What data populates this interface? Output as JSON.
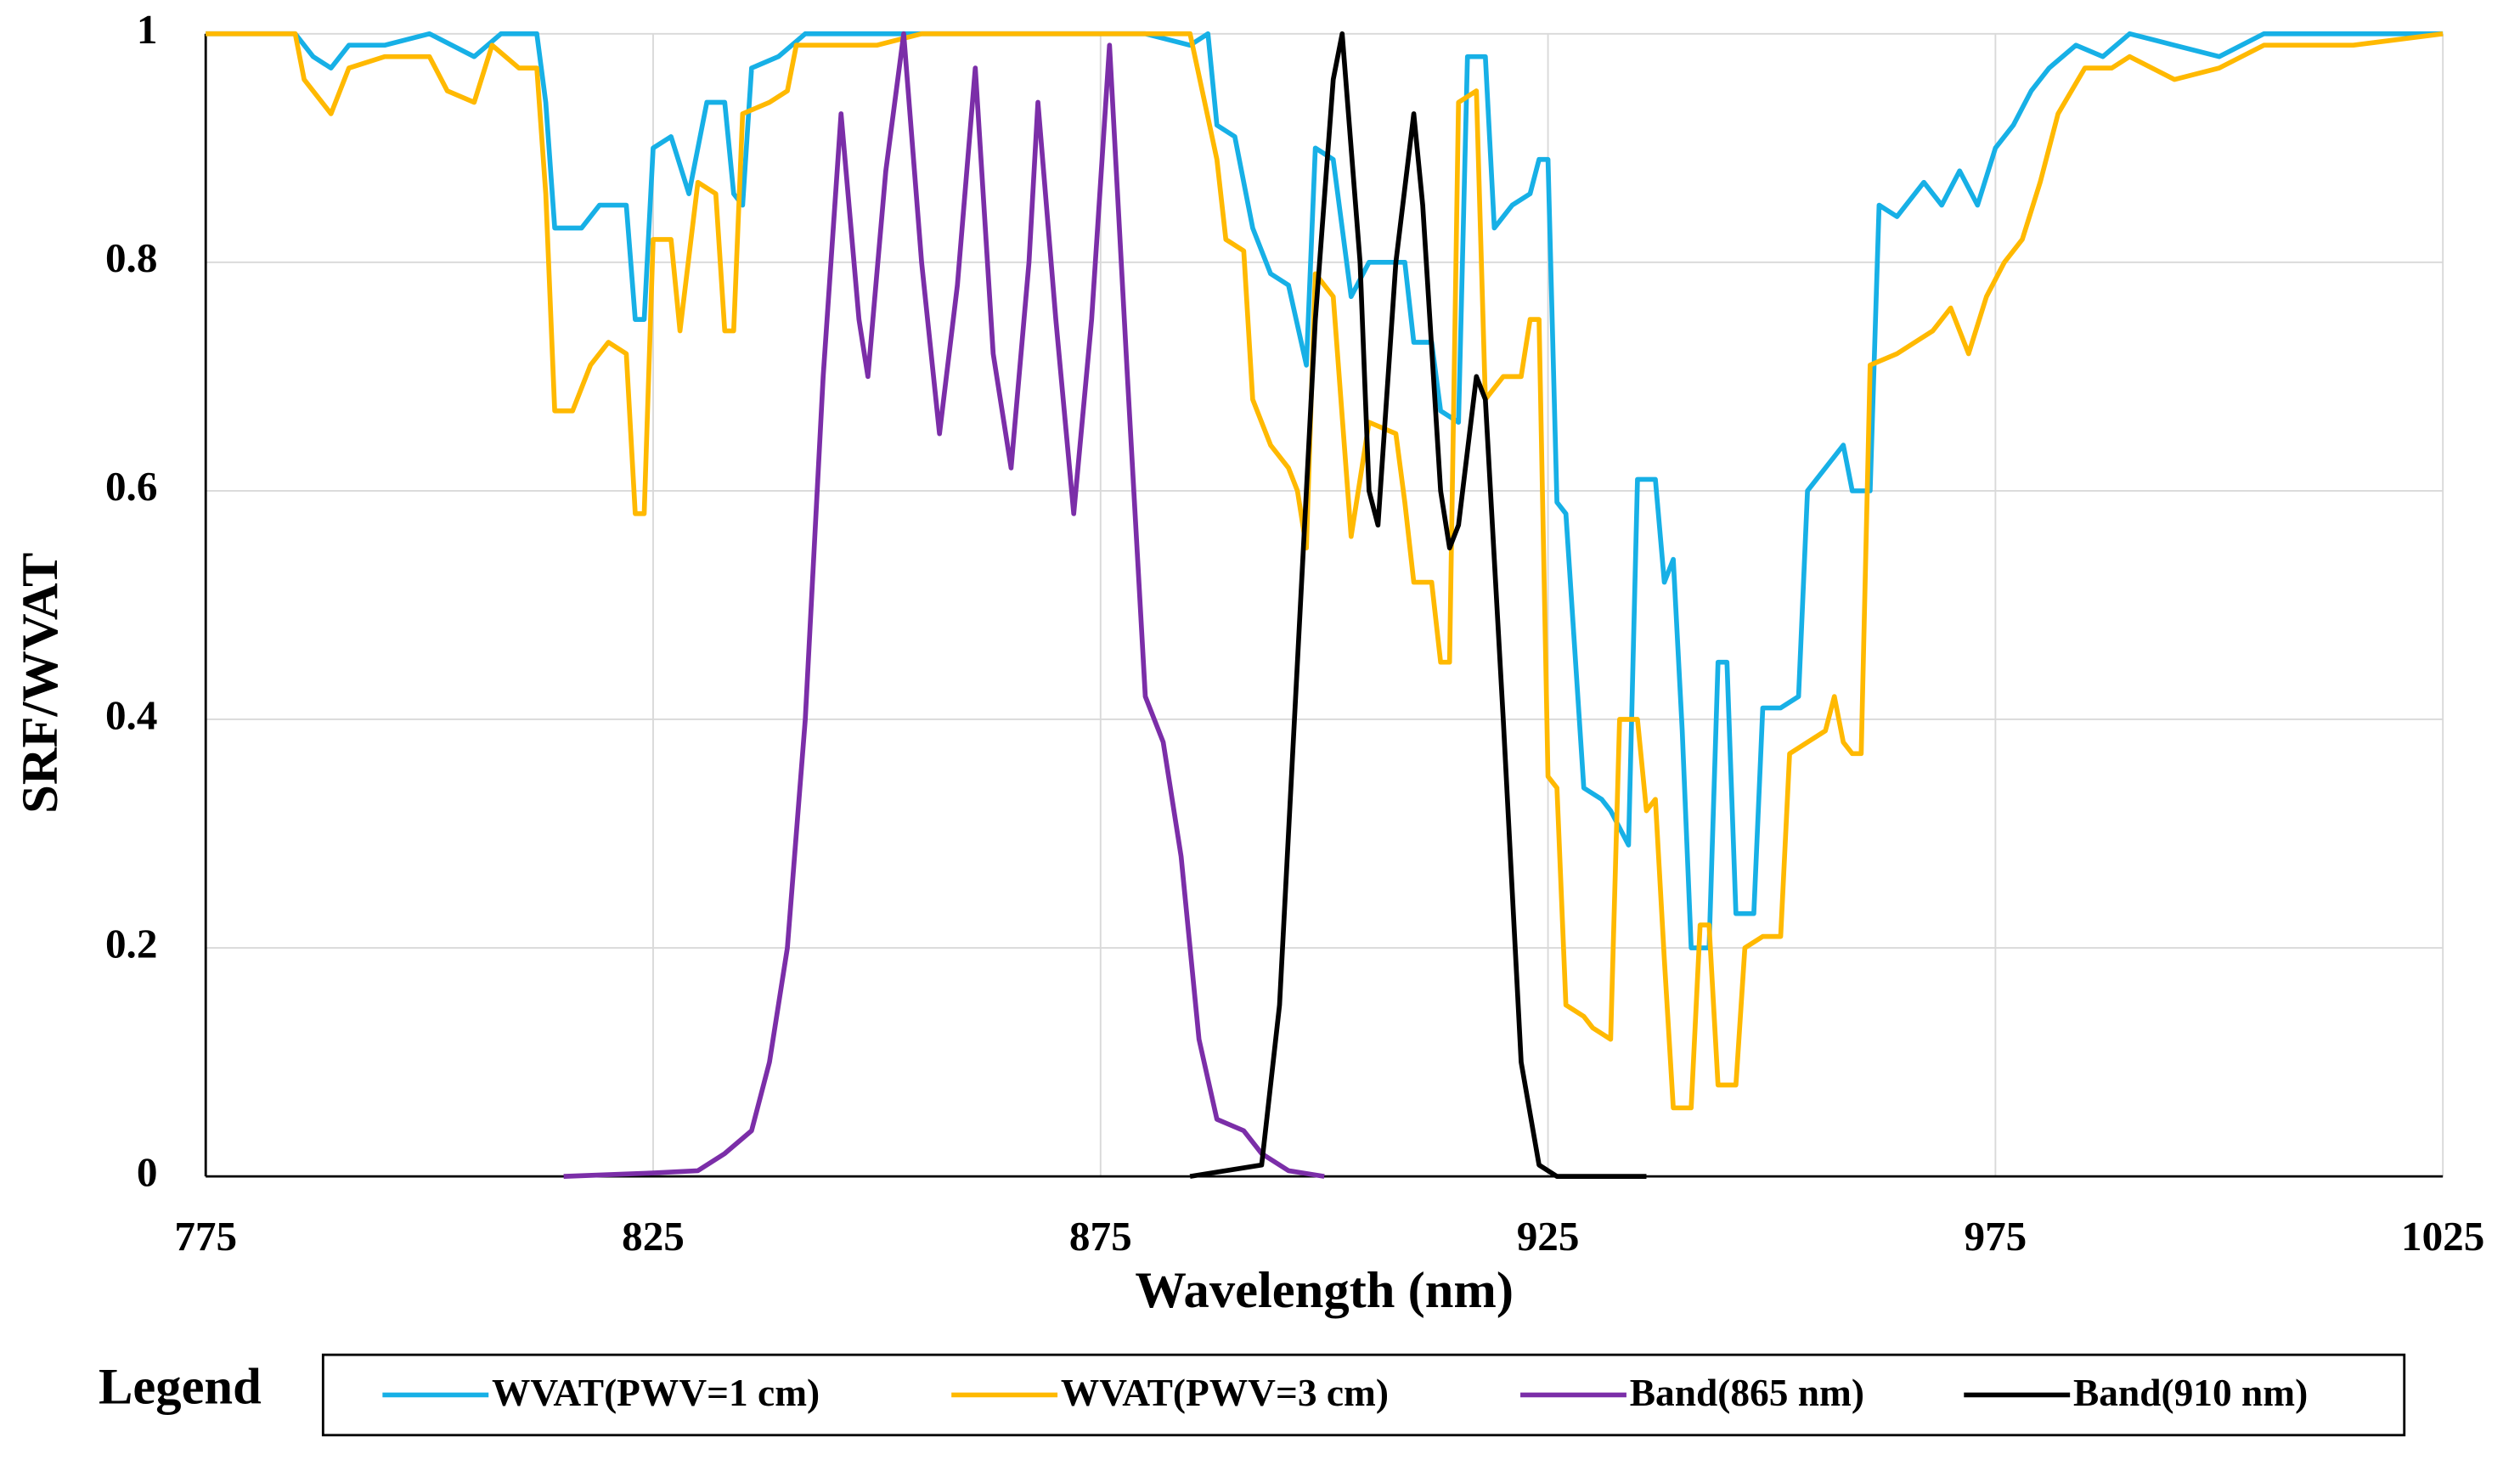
{
  "chart_data": {
    "type": "line",
    "y_label": "SRF/WVAT",
    "x_label": "Wavelength (nm)",
    "legend_title": "Legend",
    "xlim": [
      775,
      1025
    ],
    "ylim": [
      0,
      1
    ],
    "xticks": [
      775,
      825,
      875,
      925,
      975,
      1025
    ],
    "yticks": [
      0,
      0.2,
      0.4,
      0.6,
      0.8,
      1
    ],
    "grid": true,
    "series": [
      {
        "name": "WVAT(PWV=1 cm)",
        "color": "#17b0e6",
        "x": [
          775,
          785,
          787,
          789,
          791,
          795,
          800,
          805,
          808,
          812,
          813,
          814,
          817,
          819,
          822,
          823,
          824,
          825,
          827,
          829,
          831,
          833,
          834,
          835,
          836,
          839,
          842,
          855,
          880,
          885,
          887,
          888,
          890,
          892,
          894,
          896,
          898,
          899,
          901,
          903,
          905,
          909,
          910,
          912,
          913,
          915,
          916,
          918,
          919,
          921,
          923,
          924,
          925,
          926,
          927,
          929,
          931,
          932,
          934,
          935,
          937,
          938,
          939,
          940,
          941,
          943,
          944,
          945,
          946,
          948,
          949,
          951,
          953,
          954,
          956,
          958,
          959,
          961,
          962,
          964,
          967,
          969,
          971,
          973,
          975,
          977,
          979,
          981,
          984,
          987,
          990,
          995,
          1000,
          1005,
          1010,
          1025
        ],
        "values": [
          1,
          1,
          0.98,
          0.97,
          0.99,
          0.99,
          1,
          0.98,
          1,
          1,
          0.94,
          0.83,
          0.83,
          0.85,
          0.85,
          0.75,
          0.75,
          0.9,
          0.91,
          0.86,
          0.94,
          0.94,
          0.86,
          0.85,
          0.97,
          0.98,
          1,
          1,
          1,
          0.99,
          1,
          0.92,
          0.91,
          0.83,
          0.79,
          0.78,
          0.71,
          0.9,
          0.89,
          0.77,
          0.8,
          0.8,
          0.73,
          0.73,
          0.67,
          0.66,
          0.98,
          0.98,
          0.83,
          0.85,
          0.86,
          0.89,
          0.89,
          0.59,
          0.58,
          0.34,
          0.33,
          0.32,
          0.29,
          0.61,
          0.61,
          0.52,
          0.54,
          0.39,
          0.2,
          0.2,
          0.45,
          0.45,
          0.23,
          0.23,
          0.41,
          0.41,
          0.42,
          0.6,
          0.62,
          0.64,
          0.6,
          0.6,
          0.85,
          0.84,
          0.87,
          0.85,
          0.88,
          0.85,
          0.9,
          0.92,
          0.95,
          0.97,
          0.99,
          0.98,
          1,
          0.99,
          0.98,
          1,
          1,
          1
        ]
      },
      {
        "name": "WVAT(PWV=3 cm)",
        "color": "#ffb900",
        "x": [
          775,
          785,
          786,
          789,
          791,
          795,
          800,
          802,
          805,
          807,
          810,
          812,
          813,
          814,
          816,
          818,
          820,
          822,
          823,
          824,
          825,
          827,
          828,
          830,
          832,
          833,
          834,
          835,
          838,
          840,
          841,
          845,
          850,
          855,
          880,
          885,
          888,
          889,
          891,
          892,
          894,
          896,
          897,
          898,
          899,
          901,
          903,
          905,
          908,
          909,
          910,
          912,
          913,
          914,
          915,
          917,
          918,
          920,
          922,
          923,
          924,
          925,
          926,
          927,
          929,
          930,
          932,
          933,
          935,
          936,
          937,
          938,
          939,
          941,
          942,
          943,
          944,
          946,
          947,
          949,
          951,
          952,
          954,
          956,
          957,
          958,
          959,
          960,
          961,
          964,
          966,
          968,
          970,
          972,
          974,
          976,
          978,
          980,
          982,
          985,
          988,
          990,
          995,
          1000,
          1005,
          1010,
          1015,
          1025
        ],
        "values": [
          1,
          1,
          0.96,
          0.93,
          0.97,
          0.98,
          0.98,
          0.95,
          0.94,
          0.99,
          0.97,
          0.97,
          0.86,
          0.67,
          0.67,
          0.71,
          0.73,
          0.72,
          0.58,
          0.58,
          0.82,
          0.82,
          0.74,
          0.87,
          0.86,
          0.74,
          0.74,
          0.93,
          0.94,
          0.95,
          0.99,
          0.99,
          0.99,
          1,
          1,
          1,
          0.89,
          0.82,
          0.81,
          0.68,
          0.64,
          0.62,
          0.6,
          0.55,
          0.79,
          0.77,
          0.56,
          0.66,
          0.65,
          0.59,
          0.52,
          0.52,
          0.45,
          0.45,
          0.94,
          0.95,
          0.68,
          0.7,
          0.7,
          0.75,
          0.75,
          0.35,
          0.34,
          0.15,
          0.14,
          0.13,
          0.12,
          0.4,
          0.4,
          0.32,
          0.33,
          0.19,
          0.06,
          0.06,
          0.22,
          0.22,
          0.08,
          0.08,
          0.2,
          0.21,
          0.21,
          0.37,
          0.38,
          0.39,
          0.42,
          0.38,
          0.37,
          0.37,
          0.71,
          0.72,
          0.73,
          0.74,
          0.76,
          0.72,
          0.77,
          0.8,
          0.82,
          0.87,
          0.93,
          0.97,
          0.97,
          0.98,
          0.96,
          0.97,
          0.99,
          0.99,
          0.99,
          1
        ]
      },
      {
        "name": "Band(865 nm)",
        "color": "#7b2ea8",
        "x": [
          815,
          825,
          830,
          833,
          836,
          838,
          840,
          842,
          844,
          846,
          848,
          849,
          851,
          853,
          855,
          857,
          859,
          861,
          863,
          865,
          867,
          868,
          870,
          872,
          874,
          876,
          878,
          880,
          882,
          884,
          886,
          888,
          891,
          893,
          896,
          900
        ],
        "values": [
          0,
          0.003,
          0.005,
          0.02,
          0.04,
          0.1,
          0.2,
          0.4,
          0.7,
          0.93,
          0.75,
          0.7,
          0.88,
          1,
          0.8,
          0.65,
          0.78,
          0.97,
          0.72,
          0.62,
          0.8,
          0.94,
          0.75,
          0.58,
          0.75,
          0.99,
          0.7,
          0.42,
          0.38,
          0.28,
          0.12,
          0.05,
          0.04,
          0.02,
          0.005,
          0
        ]
      },
      {
        "name": "Band(910 nm)",
        "color": "#000000",
        "x": [
          885,
          893,
          895,
          897,
          899,
          901,
          902,
          904,
          905,
          906,
          908,
          910,
          911,
          913,
          914,
          915,
          917,
          918,
          920,
          922,
          924,
          926,
          936
        ],
        "values": [
          0,
          0.01,
          0.15,
          0.45,
          0.75,
          0.96,
          1,
          0.8,
          0.6,
          0.57,
          0.8,
          0.93,
          0.85,
          0.6,
          0.55,
          0.57,
          0.7,
          0.68,
          0.4,
          0.1,
          0.01,
          0,
          0
        ]
      }
    ]
  }
}
